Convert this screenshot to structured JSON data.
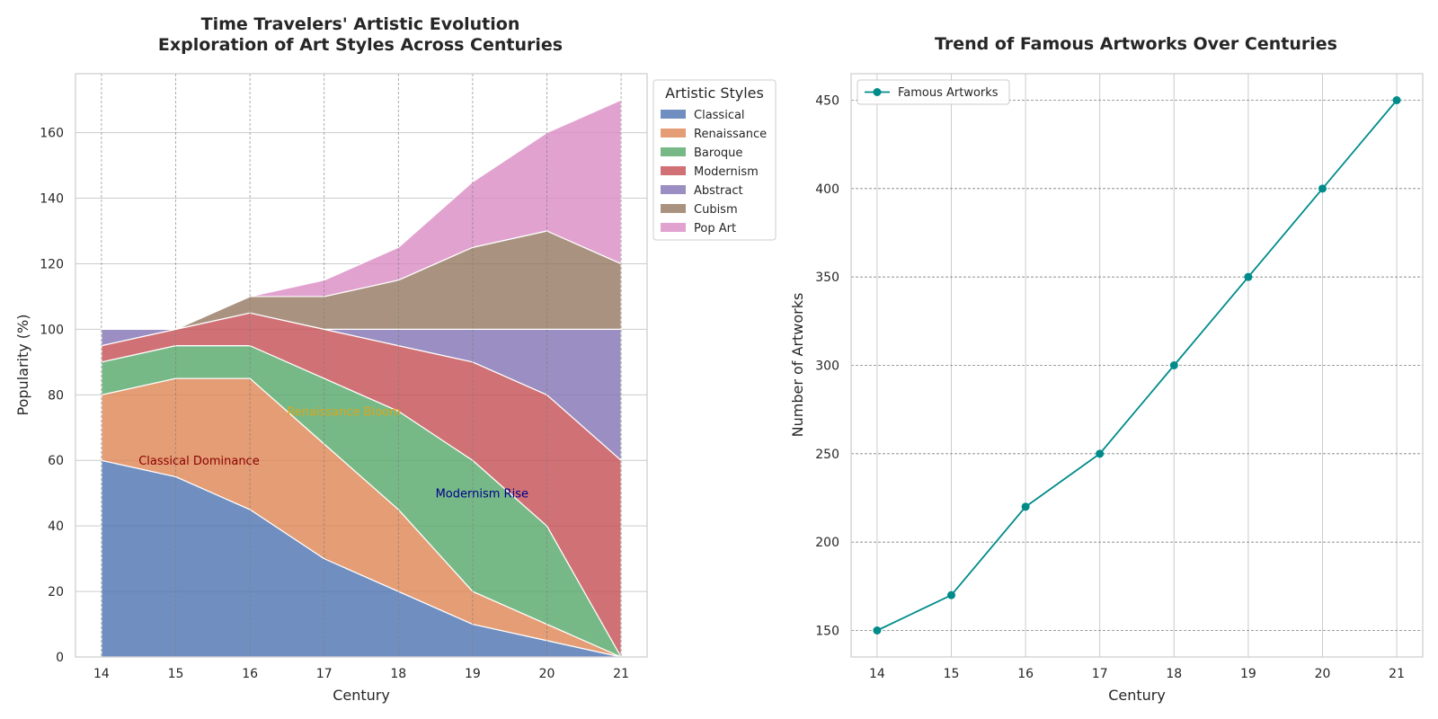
{
  "chart_data": [
    {
      "type": "area",
      "stacked": true,
      "title": "Time Travelers' Artistic Evolution\nExploration of Art Styles Across Centuries",
      "xlabel": "Century",
      "ylabel": "Popularity (%)",
      "x": [
        14,
        15,
        16,
        17,
        18,
        19,
        20,
        21
      ],
      "xlim": [
        13.65,
        21.35
      ],
      "ylim": [
        0,
        178
      ],
      "yticks": [
        0,
        20,
        40,
        60,
        80,
        100,
        120,
        140,
        160
      ],
      "grid": true,
      "legend": {
        "title": "Artistic Styles",
        "placement": "outside-top-right"
      },
      "series": [
        {
          "name": "Classical",
          "color": "#4c72b0",
          "values": [
            60,
            55,
            45,
            30,
            20,
            10,
            5,
            0
          ]
        },
        {
          "name": "Renaissance",
          "color": "#dd8452",
          "values": [
            20,
            30,
            40,
            35,
            25,
            10,
            5,
            0
          ]
        },
        {
          "name": "Baroque",
          "color": "#55a868",
          "values": [
            10,
            10,
            10,
            20,
            30,
            40,
            30,
            0
          ]
        },
        {
          "name": "Modernism",
          "color": "#c44e52",
          "values": [
            5,
            5,
            10,
            15,
            20,
            30,
            40,
            60
          ]
        },
        {
          "name": "Abstract",
          "color": "#8172b3",
          "values": [
            5,
            0,
            0,
            0,
            5,
            10,
            20,
            40
          ]
        },
        {
          "name": "Cubism",
          "color": "#937860",
          "values": [
            0,
            0,
            5,
            10,
            15,
            25,
            30,
            20
          ]
        },
        {
          "name": "Pop Art",
          "color": "#da8bc3",
          "values": [
            0,
            0,
            0,
            5,
            10,
            20,
            30,
            50
          ]
        }
      ],
      "annotations": [
        {
          "text": "Classical Dominance",
          "x": 14.5,
          "y": 60,
          "color": "#8b0000"
        },
        {
          "text": "Renaissance Bloom",
          "x": 16.5,
          "y": 75,
          "color": "#daa520"
        },
        {
          "text": "Modernism Rise",
          "x": 18.5,
          "y": 50,
          "color": "#00008b"
        }
      ]
    },
    {
      "type": "line",
      "title": "Trend of Famous Artworks Over Centuries",
      "xlabel": "Century",
      "ylabel": "Number of Artworks",
      "x": [
        14,
        15,
        16,
        17,
        18,
        19,
        20,
        21
      ],
      "xlim": [
        13.65,
        21.35
      ],
      "ylim": [
        135,
        465
      ],
      "yticks": [
        150,
        200,
        250,
        300,
        350,
        400,
        450
      ],
      "grid": true,
      "legend": {
        "placement": "upper-left"
      },
      "series": [
        {
          "name": "Famous Artworks",
          "color": "#008b8b",
          "marker": "circle",
          "values": [
            150,
            170,
            220,
            250,
            300,
            350,
            400,
            450
          ]
        }
      ]
    }
  ]
}
